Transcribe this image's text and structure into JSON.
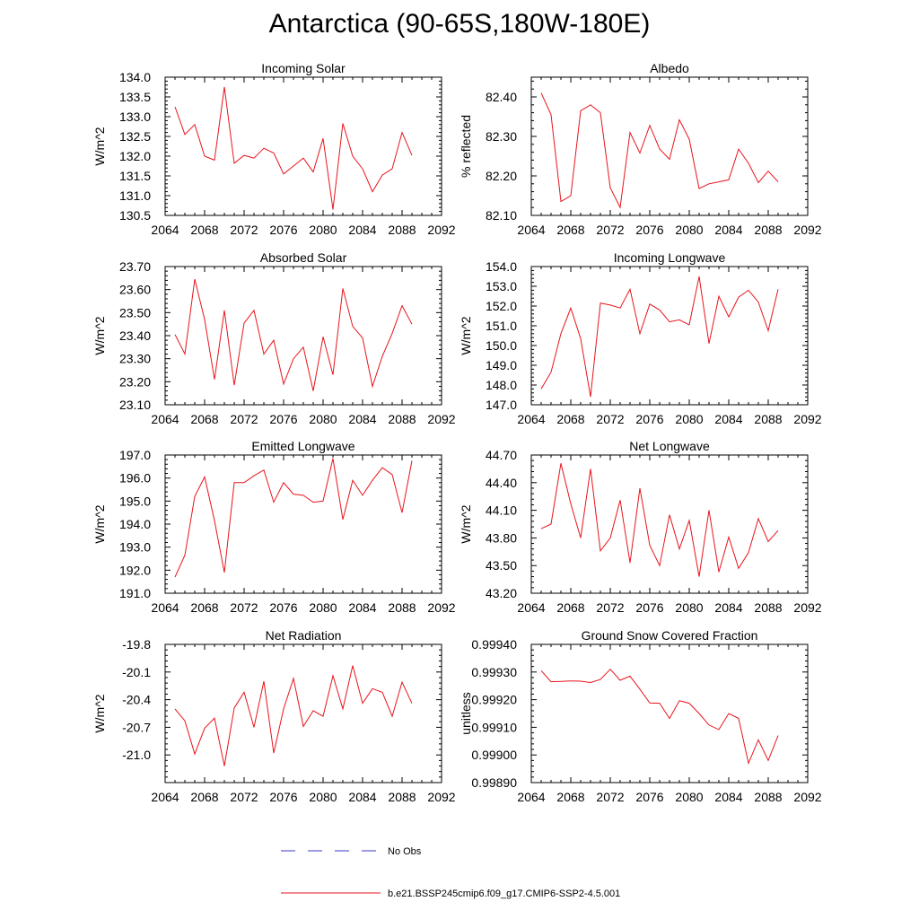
{
  "title": "Antarctica (90-65S,180W-180E)",
  "legend": [
    {
      "label": "No Obs",
      "color": "#3a3ac8",
      "dashed": true
    },
    {
      "label": "b.e21.BSSP245cmip6.f09_g17.CMIP6-SSP2-4.5.001",
      "color": "#e8141c",
      "dashed": false
    }
  ],
  "chart_data": [
    {
      "type": "line",
      "title": "Incoming Solar",
      "ylabel": "W/m^2",
      "xlim": [
        2064,
        2092
      ],
      "xticks": [
        2064,
        2068,
        2072,
        2076,
        2080,
        2084,
        2088,
        2092
      ],
      "xtick_labels": [
        "2064",
        "2068",
        "2072",
        "2076",
        "2080",
        "2084",
        "2088",
        "2092"
      ],
      "ylim": [
        130.5,
        134.0
      ],
      "yticks": [
        130.5,
        131.0,
        131.5,
        132.0,
        132.5,
        133.0,
        133.5,
        134.0
      ],
      "ytick_labels": [
        "130.5",
        "131.0",
        "131.5",
        "132.0",
        "132.5",
        "133.0",
        "133.5",
        "134.0"
      ],
      "x": [
        2065,
        2066,
        2067,
        2068,
        2069,
        2070,
        2071,
        2072,
        2073,
        2074,
        2075,
        2076,
        2077,
        2078,
        2079,
        2080,
        2081,
        2082,
        2083,
        2084,
        2085,
        2086,
        2087,
        2088,
        2089
      ],
      "series": [
        {
          "values": [
            133.25,
            132.55,
            132.8,
            132.0,
            131.9,
            133.75,
            131.82,
            132.02,
            131.95,
            132.2,
            132.08,
            131.55,
            131.75,
            131.95,
            131.6,
            132.45,
            130.65,
            132.83,
            132.0,
            131.68,
            131.1,
            131.52,
            131.68,
            132.6,
            132.02
          ],
          "color": "#e8141c"
        }
      ]
    },
    {
      "type": "line",
      "title": "Albedo",
      "ylabel": "% reflected",
      "xlim": [
        2064,
        2092
      ],
      "xticks": [
        2064,
        2068,
        2072,
        2076,
        2080,
        2084,
        2088,
        2092
      ],
      "xtick_labels": [
        "2064",
        "2068",
        "2072",
        "2076",
        "2080",
        "2084",
        "2088",
        "2092"
      ],
      "ylim": [
        82.1,
        82.45
      ],
      "yticks": [
        82.1,
        82.2,
        82.3,
        82.4
      ],
      "ytick_labels": [
        "82.10",
        "82.20",
        "82.30",
        "82.40"
      ],
      "x": [
        2065,
        2066,
        2067,
        2068,
        2069,
        2070,
        2071,
        2072,
        2073,
        2074,
        2075,
        2076,
        2077,
        2078,
        2079,
        2080,
        2081,
        2082,
        2083,
        2084,
        2085,
        2086,
        2087,
        2088,
        2089
      ],
      "series": [
        {
          "values": [
            82.41,
            82.355,
            82.135,
            82.15,
            82.365,
            82.38,
            82.36,
            82.17,
            82.12,
            82.31,
            82.258,
            82.328,
            82.268,
            82.242,
            82.342,
            82.293,
            82.168,
            82.18,
            82.185,
            82.19,
            82.268,
            82.232,
            82.183,
            82.212,
            82.185
          ],
          "color": "#e8141c"
        }
      ]
    },
    {
      "type": "line",
      "title": "Absorbed Solar",
      "ylabel": "W/m^2",
      "xlim": [
        2064,
        2092
      ],
      "xticks": [
        2064,
        2068,
        2072,
        2076,
        2080,
        2084,
        2088,
        2092
      ],
      "xtick_labels": [
        "2064",
        "2068",
        "2072",
        "2076",
        "2080",
        "2084",
        "2088",
        "2092"
      ],
      "ylim": [
        23.1,
        23.7
      ],
      "yticks": [
        23.1,
        23.2,
        23.3,
        23.4,
        23.5,
        23.6,
        23.7
      ],
      "ytick_labels": [
        "23.10",
        "23.20",
        "23.30",
        "23.40",
        "23.50",
        "23.60",
        "23.70"
      ],
      "x": [
        2065,
        2066,
        2067,
        2068,
        2069,
        2070,
        2071,
        2072,
        2073,
        2074,
        2075,
        2076,
        2077,
        2078,
        2079,
        2080,
        2081,
        2082,
        2083,
        2084,
        2085,
        2086,
        2087,
        2088,
        2089
      ],
      "series": [
        {
          "values": [
            23.405,
            23.32,
            23.645,
            23.47,
            23.21,
            23.51,
            23.185,
            23.455,
            23.51,
            23.32,
            23.38,
            23.19,
            23.3,
            23.35,
            23.16,
            23.395,
            23.23,
            23.605,
            23.44,
            23.39,
            23.18,
            23.31,
            23.41,
            23.53,
            23.45
          ],
          "color": "#e8141c"
        }
      ]
    },
    {
      "type": "line",
      "title": "Incoming Longwave",
      "ylabel": "W/m^2",
      "xlim": [
        2064,
        2092
      ],
      "xticks": [
        2064,
        2068,
        2072,
        2076,
        2080,
        2084,
        2088,
        2092
      ],
      "xtick_labels": [
        "2064",
        "2068",
        "2072",
        "2076",
        "2080",
        "2084",
        "2088",
        "2092"
      ],
      "ylim": [
        147.0,
        154.0
      ],
      "yticks": [
        147.0,
        148.0,
        149.0,
        150.0,
        151.0,
        152.0,
        153.0,
        154.0
      ],
      "ytick_labels": [
        "147.0",
        "148.0",
        "149.0",
        "150.0",
        "151.0",
        "152.0",
        "153.0",
        "154.0"
      ],
      "x": [
        2065,
        2066,
        2067,
        2068,
        2069,
        2070,
        2071,
        2072,
        2073,
        2074,
        2075,
        2076,
        2077,
        2078,
        2079,
        2080,
        2081,
        2082,
        2083,
        2084,
        2085,
        2086,
        2087,
        2088,
        2089
      ],
      "series": [
        {
          "values": [
            147.8,
            148.65,
            150.6,
            151.9,
            150.35,
            147.4,
            152.15,
            152.05,
            151.9,
            152.85,
            150.6,
            152.1,
            151.8,
            151.2,
            151.3,
            151.05,
            153.5,
            150.1,
            152.5,
            151.45,
            152.45,
            152.8,
            152.2,
            150.75,
            152.85
          ],
          "color": "#e8141c"
        }
      ]
    },
    {
      "type": "line",
      "title": "Emitted Longwave",
      "ylabel": "W/m^2",
      "xlim": [
        2064,
        2092
      ],
      "xticks": [
        2064,
        2068,
        2072,
        2076,
        2080,
        2084,
        2088,
        2092
      ],
      "xtick_labels": [
        "2064",
        "2068",
        "2072",
        "2076",
        "2080",
        "2084",
        "2088",
        "2092"
      ],
      "ylim": [
        191.0,
        197.0
      ],
      "yticks": [
        191.0,
        192.0,
        193.0,
        194.0,
        195.0,
        196.0,
        197.0
      ],
      "ytick_labels": [
        "191.0",
        "192.0",
        "193.0",
        "194.0",
        "195.0",
        "196.0",
        "197.0"
      ],
      "x": [
        2065,
        2066,
        2067,
        2068,
        2069,
        2070,
        2071,
        2072,
        2073,
        2074,
        2075,
        2076,
        2077,
        2078,
        2079,
        2080,
        2081,
        2082,
        2083,
        2084,
        2085,
        2086,
        2087,
        2088,
        2089
      ],
      "series": [
        {
          "values": [
            191.7,
            192.65,
            195.2,
            196.05,
            194.15,
            191.9,
            195.8,
            195.8,
            196.1,
            196.35,
            194.95,
            195.8,
            195.3,
            195.25,
            194.95,
            195.0,
            196.85,
            194.2,
            195.9,
            195.25,
            195.9,
            196.45,
            196.15,
            194.5,
            196.75
          ],
          "color": "#e8141c"
        }
      ]
    },
    {
      "type": "line",
      "title": "Net Longwave",
      "ylabel": "W/m^2",
      "xlim": [
        2064,
        2092
      ],
      "xticks": [
        2064,
        2068,
        2072,
        2076,
        2080,
        2084,
        2088,
        2092
      ],
      "xtick_labels": [
        "2064",
        "2068",
        "2072",
        "2076",
        "2080",
        "2084",
        "2088",
        "2092"
      ],
      "ylim": [
        43.2,
        44.7
      ],
      "yticks": [
        43.2,
        43.5,
        43.8,
        44.1,
        44.4,
        44.7
      ],
      "ytick_labels": [
        "43.20",
        "43.50",
        "43.80",
        "44.10",
        "44.40",
        "44.70"
      ],
      "x": [
        2065,
        2066,
        2067,
        2068,
        2069,
        2070,
        2071,
        2072,
        2073,
        2074,
        2075,
        2076,
        2077,
        2078,
        2079,
        2080,
        2081,
        2082,
        2083,
        2084,
        2085,
        2086,
        2087,
        2088,
        2089
      ],
      "series": [
        {
          "values": [
            43.9,
            43.95,
            44.61,
            44.17,
            43.8,
            44.55,
            43.66,
            43.8,
            44.21,
            43.53,
            44.34,
            43.72,
            43.5,
            44.05,
            43.68,
            43.99,
            43.38,
            44.1,
            43.43,
            43.81,
            43.47,
            43.64,
            44.01,
            43.76,
            43.88
          ],
          "color": "#e8141c"
        }
      ]
    },
    {
      "type": "line",
      "title": "Net Radiation",
      "ylabel": "W/m^2",
      "xlim": [
        2064,
        2092
      ],
      "xticks": [
        2064,
        2068,
        2072,
        2076,
        2080,
        2084,
        2088,
        2092
      ],
      "xtick_labels": [
        "2064",
        "2068",
        "2072",
        "2076",
        "2080",
        "2084",
        "2088",
        "2092"
      ],
      "ylim": [
        -21.3,
        -19.8
      ],
      "yticks": [
        -21.0,
        -20.7,
        -20.4,
        -20.1,
        -19.8
      ],
      "ytick_labels": [
        "-21.0",
        "-20.7",
        "-20.4",
        "-20.1",
        "-19.8"
      ],
      "x": [
        2065,
        2066,
        2067,
        2068,
        2069,
        2070,
        2071,
        2072,
        2073,
        2074,
        2075,
        2076,
        2077,
        2078,
        2079,
        2080,
        2081,
        2082,
        2083,
        2084,
        2085,
        2086,
        2087,
        2088,
        2089
      ],
      "series": [
        {
          "values": [
            -20.5,
            -20.63,
            -20.99,
            -20.71,
            -20.6,
            -21.12,
            -20.49,
            -20.32,
            -20.7,
            -20.2,
            -20.98,
            -20.5,
            -20.17,
            -20.69,
            -20.52,
            -20.58,
            -20.14,
            -20.5,
            -20.03,
            -20.44,
            -20.28,
            -20.32,
            -20.58,
            -20.21,
            -20.44
          ],
          "color": "#e8141c"
        }
      ]
    },
    {
      "type": "line",
      "title": "Ground Snow Covered Fraction",
      "ylabel": "unitless",
      "xlim": [
        2064,
        2092
      ],
      "xticks": [
        2064,
        2068,
        2072,
        2076,
        2080,
        2084,
        2088,
        2092
      ],
      "xtick_labels": [
        "2064",
        "2068",
        "2072",
        "2076",
        "2080",
        "2084",
        "2088",
        "2092"
      ],
      "ylim": [
        0.9989,
        0.9994
      ],
      "yticks": [
        0.9989,
        0.999,
        0.9991,
        0.9992,
        0.9993,
        0.9994
      ],
      "ytick_labels": [
        "0.99890",
        "0.99900",
        "0.99910",
        "0.99920",
        "0.99930",
        "0.99940"
      ],
      "x": [
        2065,
        2066,
        2067,
        2068,
        2069,
        2070,
        2071,
        2072,
        2073,
        2074,
        2075,
        2076,
        2077,
        2078,
        2079,
        2080,
        2081,
        2082,
        2083,
        2084,
        2085,
        2086,
        2087,
        2088,
        2089
      ],
      "series": [
        {
          "values": [
            0.999305,
            0.999265,
            0.999266,
            0.999268,
            0.999267,
            0.999262,
            0.999273,
            0.99931,
            0.99927,
            0.999285,
            0.999238,
            0.999188,
            0.999187,
            0.999132,
            0.999196,
            0.999187,
            0.99915,
            0.999108,
            0.999092,
            0.99915,
            0.999132,
            0.99897,
            0.999055,
            0.99898,
            0.99907
          ],
          "color": "#e8141c"
        }
      ]
    }
  ]
}
